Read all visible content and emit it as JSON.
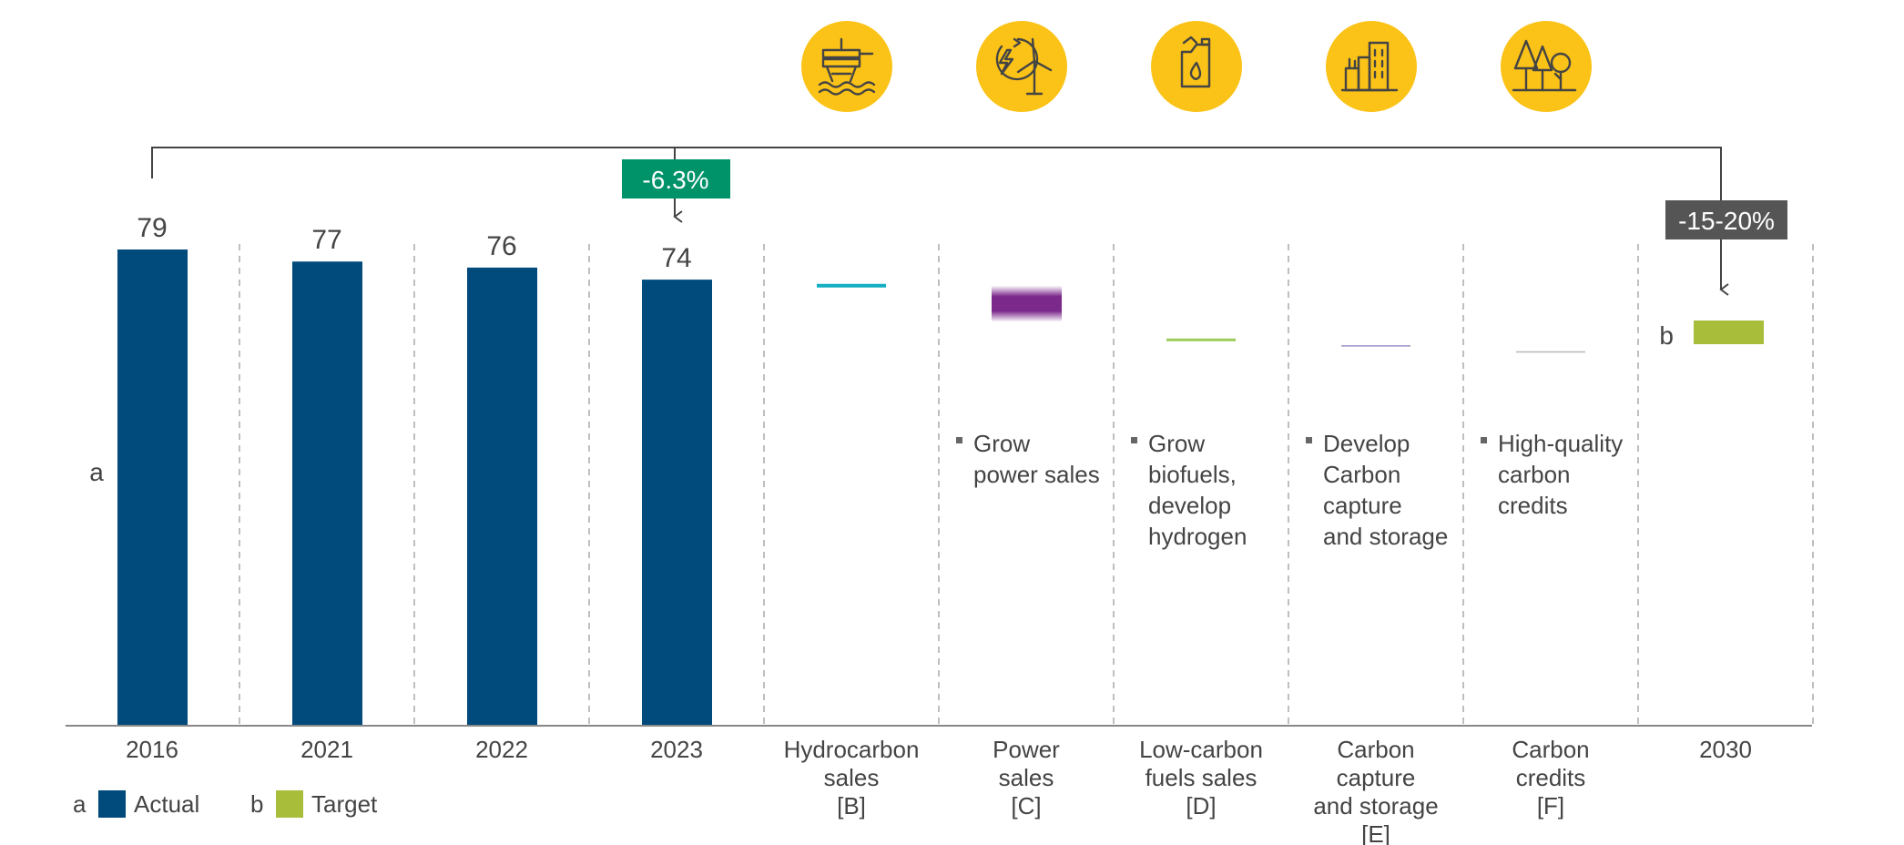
{
  "chart_data": {
    "type": "bar",
    "title": "",
    "xlabel": "",
    "ylabel": "",
    "ylim": [
      0,
      79
    ],
    "categories": [
      "2016",
      "2021",
      "2022",
      "2023"
    ],
    "values": [
      79,
      77,
      76,
      74
    ],
    "series_label": "Actual",
    "series_marker": "a",
    "target": {
      "category": "2030",
      "marker": "b",
      "label": "Target",
      "reduction": "-15-20%",
      "value_range": [
        63,
        67
      ]
    },
    "reduction_2023": "-6.3%",
    "levers": [
      {
        "id": "hydrocarbon",
        "label": [
          "Hydrocarbon",
          "sales",
          "[B]"
        ],
        "icon": "offshore-platform-icon",
        "color": "#12aec3",
        "level": 73,
        "bullets": []
      },
      {
        "id": "power",
        "label": [
          "Power",
          "sales",
          "[C]"
        ],
        "icon": "lightning-wind-turbine-icon",
        "color": "#7b2a8c",
        "level": 70,
        "bullets": [
          "Grow",
          "power sales"
        ]
      },
      {
        "id": "low-carbon-fuels",
        "label": [
          "Low-carbon",
          "fuels sales",
          "[D]"
        ],
        "icon": "fuel-canister-icon",
        "color": "#9ccc5a",
        "level": 64,
        "bullets": [
          "Grow",
          "biofuels,",
          "develop",
          "hydrogen"
        ]
      },
      {
        "id": "ccs",
        "label": [
          "Carbon",
          "capture",
          "and storage",
          "[E]"
        ],
        "icon": "industry-buildings-icon",
        "color": "#9a90c8",
        "level": 63,
        "bullets": [
          "Develop",
          "Carbon",
          "capture",
          "and storage"
        ]
      },
      {
        "id": "credits",
        "label": [
          "Carbon",
          "credits",
          "[F]"
        ],
        "icon": "trees-icon",
        "color": "#b8b8b8",
        "level": 62,
        "bullets": [
          "High-quality",
          "carbon",
          "credits"
        ]
      }
    ],
    "legend": [
      {
        "marker": "a",
        "label": "Actual",
        "color": "#004a7c"
      },
      {
        "marker": "b",
        "label": "Target",
        "color": "#a8bd3a"
      }
    ],
    "axis_marker": "a"
  },
  "colors": {
    "actual": "#004a7c",
    "target": "#a8bd3a",
    "reduction_2023_bg": "#00936a",
    "reduction_2030_bg": "#555555",
    "icon_bg": "#fbc217"
  }
}
